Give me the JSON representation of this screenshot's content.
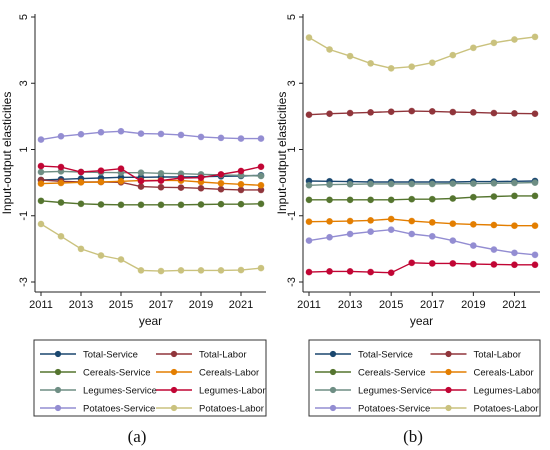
{
  "chart_data": [
    {
      "type": "line",
      "caption": "(a)",
      "xlabel": "year",
      "ylabel": "Input-output elasticities",
      "xlim": [
        2011,
        2022
      ],
      "ylim": [
        -3,
        5
      ],
      "xticks": [
        2011,
        2013,
        2015,
        2017,
        2019,
        2021
      ],
      "yticks": [
        5,
        3,
        1,
        -1,
        -3
      ],
      "grid": false,
      "x": [
        2011,
        2012,
        2013,
        2014,
        2015,
        2016,
        2017,
        2018,
        2019,
        2020,
        2021,
        2022
      ],
      "series": [
        {
          "name": "Total-Service",
          "color": "#1a476f",
          "values": [
            0.08,
            0.1,
            0.12,
            0.14,
            0.16,
            0.16,
            0.17,
            0.17,
            0.18,
            0.19,
            0.2,
            0.22
          ]
        },
        {
          "name": "Total-Labor",
          "color": "#90353b",
          "values": [
            0.08,
            0.04,
            0.02,
            0.02,
            0.01,
            -0.12,
            -0.14,
            -0.15,
            -0.17,
            -0.2,
            -0.22,
            -0.22
          ]
        },
        {
          "name": "Cereals-Service",
          "color": "#55752f",
          "values": [
            -0.55,
            -0.6,
            -0.64,
            -0.66,
            -0.67,
            -0.67,
            -0.67,
            -0.67,
            -0.66,
            -0.65,
            -0.65,
            -0.64
          ]
        },
        {
          "name": "Cereals-Labor",
          "color": "#e37e00",
          "values": [
            -0.03,
            -0.01,
            0.01,
            0.02,
            0.04,
            0.06,
            0.07,
            0.06,
            0.02,
            -0.02,
            -0.05,
            -0.08
          ]
        },
        {
          "name": "Legumes-Service",
          "color": "#6e8e84",
          "values": [
            0.32,
            0.34,
            0.32,
            0.31,
            0.3,
            0.3,
            0.28,
            0.27,
            0.25,
            0.23,
            0.22,
            0.2
          ]
        },
        {
          "name": "Legumes-Labor",
          "color": "#c10534",
          "values": [
            0.5,
            0.47,
            0.32,
            0.36,
            0.42,
            0.05,
            0.06,
            0.14,
            0.15,
            0.25,
            0.35,
            0.48
          ]
        },
        {
          "name": "Potatoes-Service",
          "color": "#938dd2",
          "values": [
            1.3,
            1.4,
            1.46,
            1.52,
            1.55,
            1.48,
            1.47,
            1.44,
            1.38,
            1.35,
            1.33,
            1.33
          ]
        },
        {
          "name": "Potatoes-Labor",
          "color": "#cac27e",
          "values": [
            -1.25,
            -1.62,
            -2.0,
            -2.2,
            -2.32,
            -2.65,
            -2.67,
            -2.65,
            -2.65,
            -2.65,
            -2.64,
            -2.58
          ]
        }
      ]
    },
    {
      "type": "line",
      "caption": "(b)",
      "xlabel": "year",
      "ylabel": "Input-output elasticities",
      "xlim": [
        2011,
        2022
      ],
      "ylim": [
        -3,
        5
      ],
      "xticks": [
        2011,
        2013,
        2015,
        2017,
        2019,
        2021
      ],
      "yticks": [
        5,
        3,
        1,
        -1,
        -3
      ],
      "grid": false,
      "x": [
        2011,
        2012,
        2013,
        2014,
        2015,
        2016,
        2017,
        2018,
        2019,
        2020,
        2021,
        2022
      ],
      "series": [
        {
          "name": "Total-Service",
          "color": "#1a476f",
          "values": [
            0.05,
            0.04,
            0.03,
            0.02,
            0.02,
            0.02,
            0.02,
            0.02,
            0.03,
            0.03,
            0.04,
            0.05
          ]
        },
        {
          "name": "Total-Labor",
          "color": "#90353b",
          "values": [
            2.05,
            2.08,
            2.1,
            2.12,
            2.14,
            2.16,
            2.15,
            2.13,
            2.12,
            2.1,
            2.09,
            2.08
          ]
        },
        {
          "name": "Cereals-Service",
          "color": "#55752f",
          "values": [
            -0.52,
            -0.52,
            -0.52,
            -0.52,
            -0.52,
            -0.5,
            -0.5,
            -0.48,
            -0.44,
            -0.42,
            -0.4,
            -0.4
          ]
        },
        {
          "name": "Cereals-Labor",
          "color": "#e37e00",
          "values": [
            -1.18,
            -1.17,
            -1.16,
            -1.14,
            -1.1,
            -1.16,
            -1.2,
            -1.24,
            -1.26,
            -1.28,
            -1.3,
            -1.3
          ]
        },
        {
          "name": "Legumes-Service",
          "color": "#6e8e84",
          "values": [
            -0.08,
            -0.06,
            -0.05,
            -0.04,
            -0.04,
            -0.04,
            -0.04,
            -0.03,
            -0.03,
            -0.02,
            -0.01,
            0.0
          ]
        },
        {
          "name": "Legumes-Labor",
          "color": "#c10534",
          "values": [
            -2.7,
            -2.68,
            -2.68,
            -2.7,
            -2.72,
            -2.42,
            -2.44,
            -2.44,
            -2.46,
            -2.47,
            -2.48,
            -2.48
          ]
        },
        {
          "name": "Potatoes-Service",
          "color": "#938dd2",
          "values": [
            -1.75,
            -1.65,
            -1.55,
            -1.48,
            -1.42,
            -1.55,
            -1.62,
            -1.75,
            -1.9,
            -2.02,
            -2.12,
            -2.18
          ]
        },
        {
          "name": "Potatoes-Labor",
          "color": "#cac27e",
          "values": [
            4.38,
            4.02,
            3.82,
            3.6,
            3.45,
            3.5,
            3.62,
            3.85,
            4.07,
            4.22,
            4.32,
            4.4
          ]
        }
      ]
    }
  ]
}
